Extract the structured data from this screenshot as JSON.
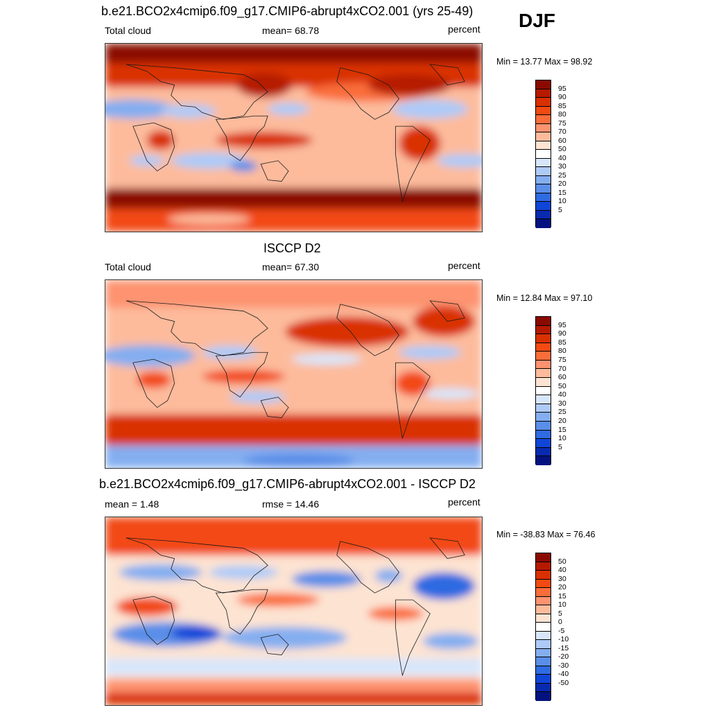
{
  "season": "DJF",
  "panels": [
    {
      "title": "b.e21.BCO2x4cmip6.f09_g17.CMIP6-abrupt4xCO2.001 (yrs 25-49)",
      "left_label": "Total cloud",
      "center_label": "mean=  68.78",
      "right_label": "percent",
      "minmax": "Min =  13.77 Max =  98.92",
      "colorbar": {
        "labels": [
          "95",
          "90",
          "85",
          "80",
          "75",
          "70",
          "60",
          "50",
          "40",
          "30",
          "25",
          "20",
          "15",
          "10",
          "5"
        ],
        "colors": [
          "#8b0a00",
          "#b51a00",
          "#d93000",
          "#f24a12",
          "#fa6d3a",
          "#fd9370",
          "#fdbb9c",
          "#fde3d2",
          "#ffffff",
          "#d8e6fb",
          "#aecaf7",
          "#84aef0",
          "#5a8ee8",
          "#2f6be2",
          "#1045d8",
          "#082ab0",
          "#03127f"
        ]
      },
      "map_field": "model-total-cloud"
    },
    {
      "title": "ISCCP D2",
      "left_label": "Total cloud",
      "center_label": "mean=  67.30",
      "right_label": "percent",
      "minmax": "Min =  12.84 Max =  97.10",
      "colorbar": {
        "labels": [
          "95",
          "90",
          "85",
          "80",
          "75",
          "70",
          "60",
          "50",
          "40",
          "30",
          "25",
          "20",
          "15",
          "10",
          "5"
        ],
        "colors": [
          "#8b0a00",
          "#b51a00",
          "#d93000",
          "#f24a12",
          "#fa6d3a",
          "#fd9370",
          "#fdbb9c",
          "#fde3d2",
          "#ffffff",
          "#d8e6fb",
          "#aecaf7",
          "#84aef0",
          "#5a8ee8",
          "#2f6be2",
          "#1045d8",
          "#082ab0",
          "#03127f"
        ]
      },
      "map_field": "obs-total-cloud"
    },
    {
      "title": "b.e21.BCO2x4cmip6.f09_g17.CMIP6-abrupt4xCO2.001 - ISCCP D2",
      "left_label": "mean =   1.48",
      "center_label": "rmse =  14.46",
      "right_label": "percent",
      "minmax": "Min = -38.83 Max =  76.46",
      "colorbar": {
        "labels": [
          "50",
          "40",
          "30",
          "20",
          "15",
          "10",
          "5",
          "0",
          "-5",
          "-10",
          "-15",
          "-20",
          "-30",
          "-40",
          "-50"
        ],
        "colors": [
          "#8b0a00",
          "#b51a00",
          "#d93000",
          "#f24a12",
          "#fa6d3a",
          "#fd9370",
          "#fdbb9c",
          "#fde3d2",
          "#ffffff",
          "#d8e6fb",
          "#aecaf7",
          "#84aef0",
          "#5a8ee8",
          "#2f6be2",
          "#1045d8",
          "#082ab0",
          "#03127f"
        ]
      },
      "map_field": "difference"
    }
  ]
}
